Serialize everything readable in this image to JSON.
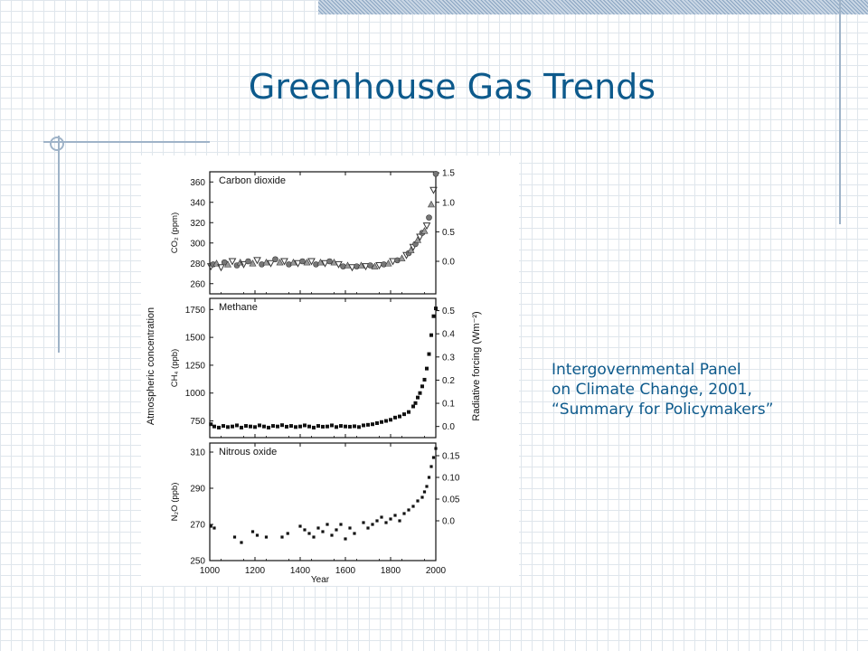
{
  "slide": {
    "title": "Greenhouse Gas Trends",
    "citation_lines": [
      "Intergovernmental Panel",
      "on Climate Change, 2001,",
      "“Summary for Policymakers”"
    ]
  },
  "colors": {
    "title": "#0d5a8c",
    "decor": "#9fb3c8",
    "grid": "#dfe6ec"
  },
  "chart_data": {
    "type": "scatter",
    "shared_x": {
      "label": "Year",
      "range": [
        1000,
        2000
      ],
      "ticks": [
        "1000",
        "1200",
        "1400",
        "1600",
        "1800",
        "2000"
      ]
    },
    "left_axis_label": "Atmospheric concentration",
    "right_axis_label": "Radiative forcing  (Wm⁻²)",
    "panels": [
      {
        "name": "Carbon dioxide",
        "ylabel": "CO₂ (ppm)",
        "ylim": [
          250,
          370
        ],
        "y_ticks": [
          "260",
          "280",
          "300",
          "320",
          "340",
          "360"
        ],
        "y_tick_values": [
          260,
          280,
          300,
          320,
          340,
          360
        ],
        "forcing_ticks": [
          "0.0",
          "0.5",
          "1.0",
          "1.5"
        ],
        "forcing_tick_values": [
          282,
          311,
          340,
          369
        ],
        "points": [
          [
            1005,
            277
          ],
          [
            1015,
            279
          ],
          [
            1030,
            280
          ],
          [
            1050,
            276
          ],
          [
            1065,
            281
          ],
          [
            1080,
            279
          ],
          [
            1100,
            282
          ],
          [
            1120,
            278
          ],
          [
            1135,
            281
          ],
          [
            1150,
            279
          ],
          [
            1170,
            282
          ],
          [
            1190,
            280
          ],
          [
            1210,
            283
          ],
          [
            1230,
            279
          ],
          [
            1250,
            281
          ],
          [
            1270,
            280
          ],
          [
            1290,
            284
          ],
          [
            1310,
            281
          ],
          [
            1330,
            282
          ],
          [
            1350,
            279
          ],
          [
            1370,
            281
          ],
          [
            1390,
            280
          ],
          [
            1410,
            282
          ],
          [
            1430,
            281
          ],
          [
            1450,
            282
          ],
          [
            1470,
            279
          ],
          [
            1490,
            281
          ],
          [
            1510,
            280
          ],
          [
            1530,
            282
          ],
          [
            1550,
            281
          ],
          [
            1570,
            279
          ],
          [
            1590,
            277
          ],
          [
            1610,
            278
          ],
          [
            1630,
            276
          ],
          [
            1650,
            277
          ],
          [
            1670,
            278
          ],
          [
            1690,
            277
          ],
          [
            1710,
            278
          ],
          [
            1730,
            277
          ],
          [
            1750,
            278
          ],
          [
            1770,
            279
          ],
          [
            1790,
            280
          ],
          [
            1810,
            282
          ],
          [
            1830,
            283
          ],
          [
            1850,
            285
          ],
          [
            1870,
            288
          ],
          [
            1880,
            290
          ],
          [
            1890,
            293
          ],
          [
            1900,
            296
          ],
          [
            1910,
            299
          ],
          [
            1920,
            303
          ],
          [
            1930,
            306
          ],
          [
            1940,
            310
          ],
          [
            1950,
            312
          ],
          [
            1960,
            317
          ],
          [
            1970,
            325
          ],
          [
            1980,
            338
          ],
          [
            1990,
            352
          ],
          [
            2000,
            368
          ]
        ]
      },
      {
        "name": "Methane",
        "ylabel": "CH₄ (ppb)",
        "ylim": [
          600,
          1850
        ],
        "y_ticks": [
          "750",
          "1000",
          "1250",
          "1500",
          "1750"
        ],
        "y_tick_values": [
          750,
          1000,
          1250,
          1500,
          1750
        ],
        "forcing_ticks": [
          "0.0",
          "0.1",
          "0.2",
          "0.3",
          "0.4",
          "0.5"
        ],
        "forcing_tick_values": [
          700,
          908,
          1116,
          1324,
          1532,
          1740
        ],
        "points": [
          [
            1005,
            720
          ],
          [
            1020,
            700
          ],
          [
            1040,
            690
          ],
          [
            1060,
            705
          ],
          [
            1080,
            695
          ],
          [
            1100,
            700
          ],
          [
            1120,
            710
          ],
          [
            1140,
            690
          ],
          [
            1160,
            705
          ],
          [
            1180,
            700
          ],
          [
            1200,
            695
          ],
          [
            1220,
            710
          ],
          [
            1240,
            700
          ],
          [
            1260,
            690
          ],
          [
            1280,
            705
          ],
          [
            1300,
            700
          ],
          [
            1320,
            712
          ],
          [
            1340,
            698
          ],
          [
            1360,
            705
          ],
          [
            1380,
            695
          ],
          [
            1400,
            700
          ],
          [
            1420,
            710
          ],
          [
            1440,
            700
          ],
          [
            1460,
            690
          ],
          [
            1480,
            705
          ],
          [
            1500,
            698
          ],
          [
            1520,
            700
          ],
          [
            1540,
            710
          ],
          [
            1560,
            695
          ],
          [
            1580,
            705
          ],
          [
            1600,
            700
          ],
          [
            1620,
            698
          ],
          [
            1640,
            702
          ],
          [
            1660,
            695
          ],
          [
            1680,
            710
          ],
          [
            1700,
            715
          ],
          [
            1720,
            720
          ],
          [
            1740,
            730
          ],
          [
            1760,
            740
          ],
          [
            1780,
            750
          ],
          [
            1800,
            760
          ],
          [
            1820,
            780
          ],
          [
            1840,
            790
          ],
          [
            1860,
            810
          ],
          [
            1880,
            830
          ],
          [
            1900,
            880
          ],
          [
            1910,
            910
          ],
          [
            1920,
            960
          ],
          [
            1930,
            1000
          ],
          [
            1940,
            1060
          ],
          [
            1950,
            1120
          ],
          [
            1960,
            1220
          ],
          [
            1970,
            1350
          ],
          [
            1980,
            1520
          ],
          [
            1990,
            1690
          ],
          [
            2000,
            1760
          ]
        ]
      },
      {
        "name": "Nitrous oxide",
        "ylabel": "N₂O (ppb)",
        "ylim": [
          250,
          315
        ],
        "y_ticks": [
          "250",
          "270",
          "290",
          "310"
        ],
        "y_tick_values": [
          250,
          270,
          290,
          310
        ],
        "forcing_ticks": [
          "0.0",
          "0.05",
          "0.10",
          "0.15"
        ],
        "forcing_tick_values": [
          272,
          284,
          296,
          308
        ],
        "points": [
          [
            1005,
            269
          ],
          [
            1020,
            268
          ],
          [
            1110,
            263
          ],
          [
            1140,
            260
          ],
          [
            1190,
            266
          ],
          [
            1210,
            264
          ],
          [
            1250,
            263
          ],
          [
            1320,
            263
          ],
          [
            1345,
            265
          ],
          [
            1400,
            269
          ],
          [
            1420,
            267
          ],
          [
            1440,
            265
          ],
          [
            1460,
            263
          ],
          [
            1480,
            268
          ],
          [
            1500,
            266
          ],
          [
            1520,
            270
          ],
          [
            1540,
            264
          ],
          [
            1560,
            267
          ],
          [
            1580,
            270
          ],
          [
            1600,
            262
          ],
          [
            1620,
            268
          ],
          [
            1640,
            265
          ],
          [
            1680,
            271
          ],
          [
            1700,
            268
          ],
          [
            1720,
            270
          ],
          [
            1740,
            272
          ],
          [
            1760,
            274
          ],
          [
            1780,
            271
          ],
          [
            1800,
            273
          ],
          [
            1820,
            275
          ],
          [
            1840,
            272
          ],
          [
            1860,
            276
          ],
          [
            1880,
            278
          ],
          [
            1900,
            280
          ],
          [
            1920,
            283
          ],
          [
            1940,
            285
          ],
          [
            1950,
            288
          ],
          [
            1960,
            291
          ],
          [
            1970,
            296
          ],
          [
            1980,
            302
          ],
          [
            1990,
            307
          ],
          [
            2000,
            312
          ]
        ]
      }
    ]
  }
}
